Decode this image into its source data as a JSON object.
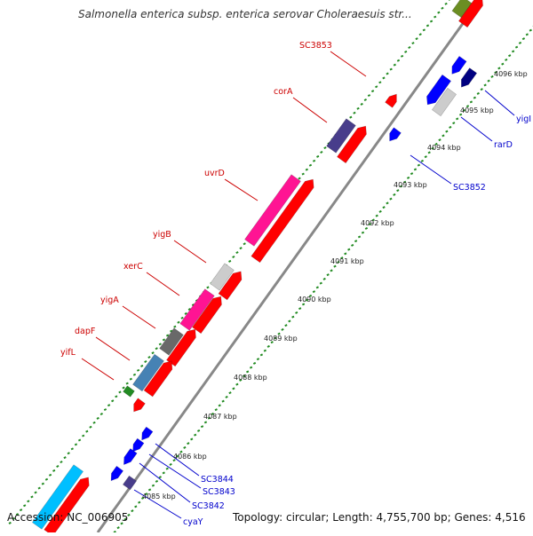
{
  "title": "Salmonella enterica subsp. enterica serovar Choleraesuis str...",
  "footer": {
    "accession": "Accession: NC_006905",
    "summary": "Topology: circular; Length: 4,755,700 bp; Genes: 4,516"
  },
  "kbp_ticks": [
    "4085 kbp",
    "4086 kbp",
    "4087 kbp",
    "4088 kbp",
    "4089 kbp",
    "4090 kbp",
    "4091 kbp",
    "4092 kbp",
    "4093 kbp",
    "4094 kbp",
    "4095 kbp",
    "4096 kbp"
  ],
  "genes_left": [
    {
      "name": "SC3853",
      "color": "#cc0000"
    },
    {
      "name": "corA",
      "color": "#cc0000"
    },
    {
      "name": "uvrD",
      "color": "#cc0000"
    },
    {
      "name": "yigB",
      "color": "#cc0000"
    },
    {
      "name": "xerC",
      "color": "#cc0000"
    },
    {
      "name": "yigA",
      "color": "#cc0000"
    },
    {
      "name": "dapF",
      "color": "#cc0000"
    },
    {
      "name": "yifL",
      "color": "#cc0000"
    }
  ],
  "genes_right": [
    {
      "name": "yigI",
      "color": "#0000cc"
    },
    {
      "name": "rarD",
      "color": "#0000cc"
    },
    {
      "name": "SC3852",
      "color": "#0000cc"
    },
    {
      "name": "SC3844",
      "color": "#0000cc"
    },
    {
      "name": "SC3843",
      "color": "#0000cc"
    },
    {
      "name": "SC3842",
      "color": "#0000cc"
    },
    {
      "name": "cyaY",
      "color": "#0000cc"
    }
  ],
  "colors": {
    "backbone": "#888888",
    "tick_green": "#228b22",
    "forward_red": "#ff0000",
    "reverse_blue": "#0000ff",
    "navy": "#000080",
    "magenta": "#ff1493",
    "slate_purple": "#483d8b",
    "steel_blue": "#4682b4",
    "dark_gray": "#696969",
    "light_gray": "#cccccc",
    "cyan": "#00bfff",
    "green": "#228b22",
    "olive_green": "#6b8e23"
  }
}
